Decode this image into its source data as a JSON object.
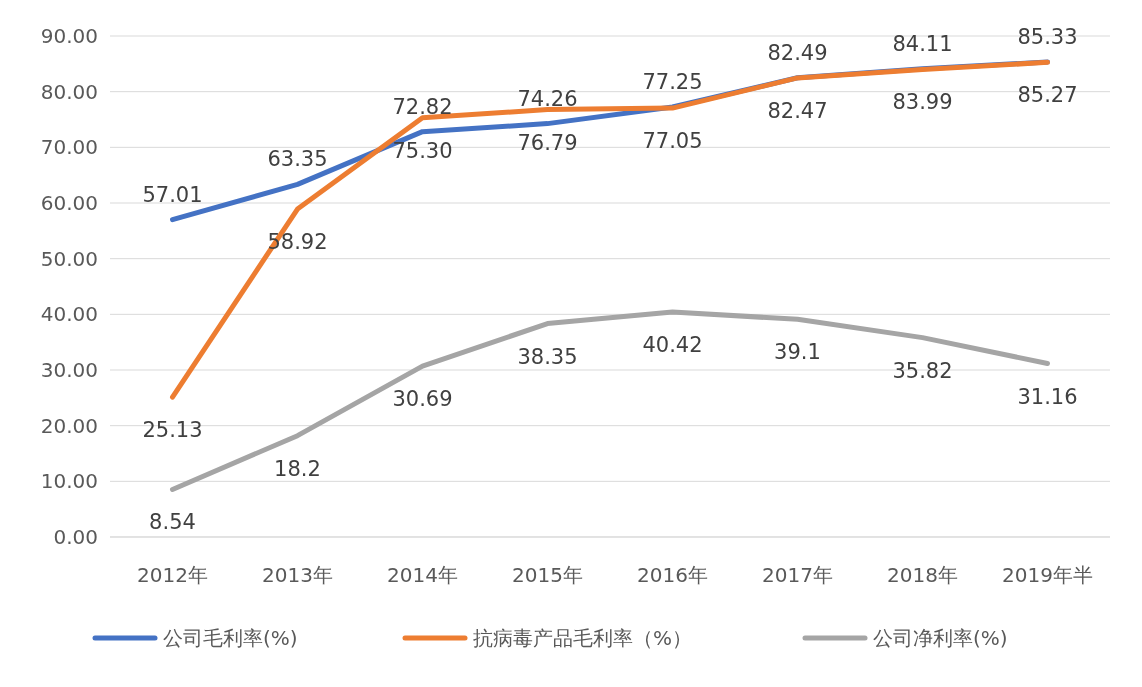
{
  "chart_data": {
    "type": "line",
    "categories": [
      "2012年",
      "2013年",
      "2014年",
      "2015年",
      "2016年",
      "2017年",
      "2018年",
      "2019年半"
    ],
    "series": [
      {
        "name": "公司毛利率(%)",
        "color": "#4472c4",
        "values": [
          57.01,
          63.35,
          72.82,
          74.26,
          77.25,
          82.49,
          84.11,
          85.33
        ],
        "value_labels": [
          "57.01",
          "63.35",
          "72.82",
          "74.26",
          "77.25",
          "82.49",
          "84.11",
          "85.33"
        ]
      },
      {
        "name": "抗病毒产品毛利率（%）",
        "color": "#ed7d31",
        "values": [
          25.13,
          58.92,
          75.3,
          76.79,
          77.05,
          82.47,
          83.99,
          85.27
        ],
        "value_labels": [
          "25.13",
          "58.92",
          "75.30",
          "76.79",
          "77.05",
          "82.47",
          "83.99",
          "85.27"
        ]
      },
      {
        "name": "公司净利率(%)",
        "color": "#a5a5a5",
        "values": [
          8.54,
          18.2,
          30.69,
          38.35,
          40.42,
          39.1,
          35.82,
          31.16
        ],
        "value_labels": [
          "8.54",
          "18.2",
          "30.69",
          "38.35",
          "40.42",
          "39.1",
          "35.82",
          "31.16"
        ]
      }
    ],
    "ylim": [
      0,
      90
    ],
    "yticks": [
      {
        "value": 0,
        "label": "0.00"
      },
      {
        "value": 10,
        "label": "10.00"
      },
      {
        "value": 20,
        "label": "20.00"
      },
      {
        "value": 30,
        "label": "30.00"
      },
      {
        "value": 40,
        "label": "40.00"
      },
      {
        "value": 50,
        "label": "50.00"
      },
      {
        "value": 60,
        "label": "60.00"
      },
      {
        "value": 70,
        "label": "70.00"
      },
      {
        "value": 80,
        "label": "80.00"
      },
      {
        "value": 90,
        "label": "90.00"
      }
    ],
    "grid": "y",
    "legend": "bottom",
    "marker": "none",
    "line_style": "solid"
  }
}
